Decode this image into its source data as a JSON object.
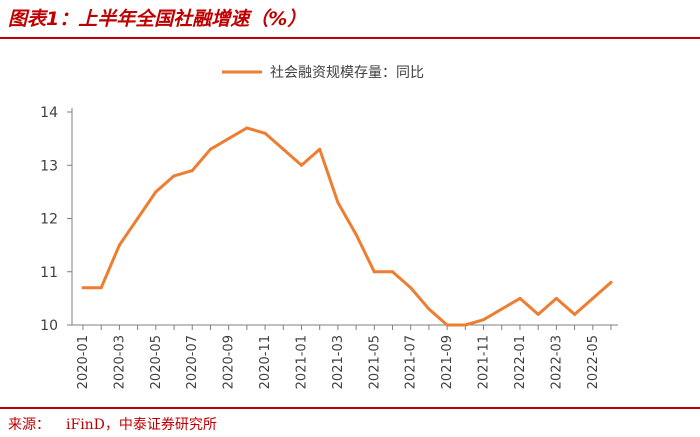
{
  "figure": {
    "title": "图表1：上半年全国社融增速（%）",
    "source_label": "来源：",
    "source_value": "iFinD，中泰证券研究所"
  },
  "chart_data": {
    "type": "line",
    "title": "",
    "xlabel": "",
    "ylabel": "",
    "ylim": [
      10,
      14
    ],
    "yticks": [
      10,
      11,
      12,
      13,
      14
    ],
    "grid": false,
    "legend_position": "top-center",
    "colors": {
      "line": "#ED7D31",
      "axis": "#7f7f7f",
      "text": "#404040"
    },
    "x": [
      "2020-01",
      "2020-02",
      "2020-03",
      "2020-04",
      "2020-05",
      "2020-06",
      "2020-07",
      "2020-08",
      "2020-09",
      "2020-10",
      "2020-11",
      "2020-12",
      "2021-01",
      "2021-02",
      "2021-03",
      "2021-04",
      "2021-05",
      "2021-06",
      "2021-07",
      "2021-08",
      "2021-09",
      "2021-10",
      "2021-11",
      "2021-12",
      "2022-01",
      "2022-02",
      "2022-03",
      "2022-04",
      "2022-05",
      "2022-06"
    ],
    "xtick_labels": [
      "2020-01",
      "2020-03",
      "2020-05",
      "2020-07",
      "2020-09",
      "2020-11",
      "2021-01",
      "2021-03",
      "2021-05",
      "2021-07",
      "2021-09",
      "2021-11",
      "2022-01",
      "2022-03",
      "2022-05"
    ],
    "series": [
      {
        "name": "社会融资规模存量：同比",
        "values": [
          10.7,
          10.7,
          11.5,
          12.0,
          12.5,
          12.8,
          12.9,
          13.3,
          13.5,
          13.7,
          13.6,
          13.3,
          13.0,
          13.3,
          12.3,
          11.7,
          11.0,
          11.0,
          10.7,
          10.3,
          10.0,
          10.0,
          10.1,
          10.3,
          10.5,
          10.2,
          10.5,
          10.2,
          10.5,
          10.8
        ]
      }
    ]
  }
}
